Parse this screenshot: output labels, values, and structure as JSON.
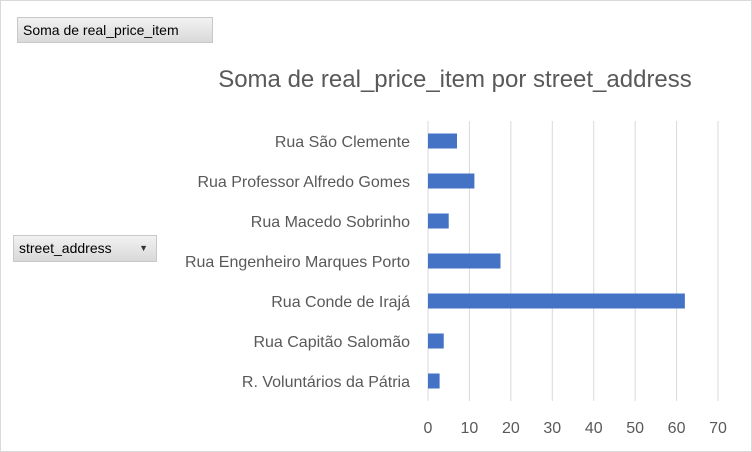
{
  "values_field_button": {
    "label": "Soma de real_price_item"
  },
  "axis_field_button": {
    "label": "street_address"
  },
  "chart_data": {
    "type": "bar",
    "orientation": "horizontal",
    "title": "Soma de real_price_item por street_address",
    "categories": [
      "Rua São Clemente",
      "Rua Professor Alfredo Gomes",
      "Rua Macedo Sobrinho",
      "Rua Engenheiro Marques Porto",
      "Rua Conde de Irajá",
      "Rua Capitão Salomão",
      "R. Voluntários da Pátria"
    ],
    "values": [
      7,
      11.2,
      5,
      17.5,
      62,
      3.8,
      2.8
    ],
    "xlim": [
      0,
      70
    ],
    "xticks": [
      0,
      10,
      20,
      30,
      40,
      50,
      60,
      70
    ],
    "grid": "vertical",
    "legend": "none",
    "bar_color": "#4472c4",
    "grid_color": "#d9d9d9"
  }
}
